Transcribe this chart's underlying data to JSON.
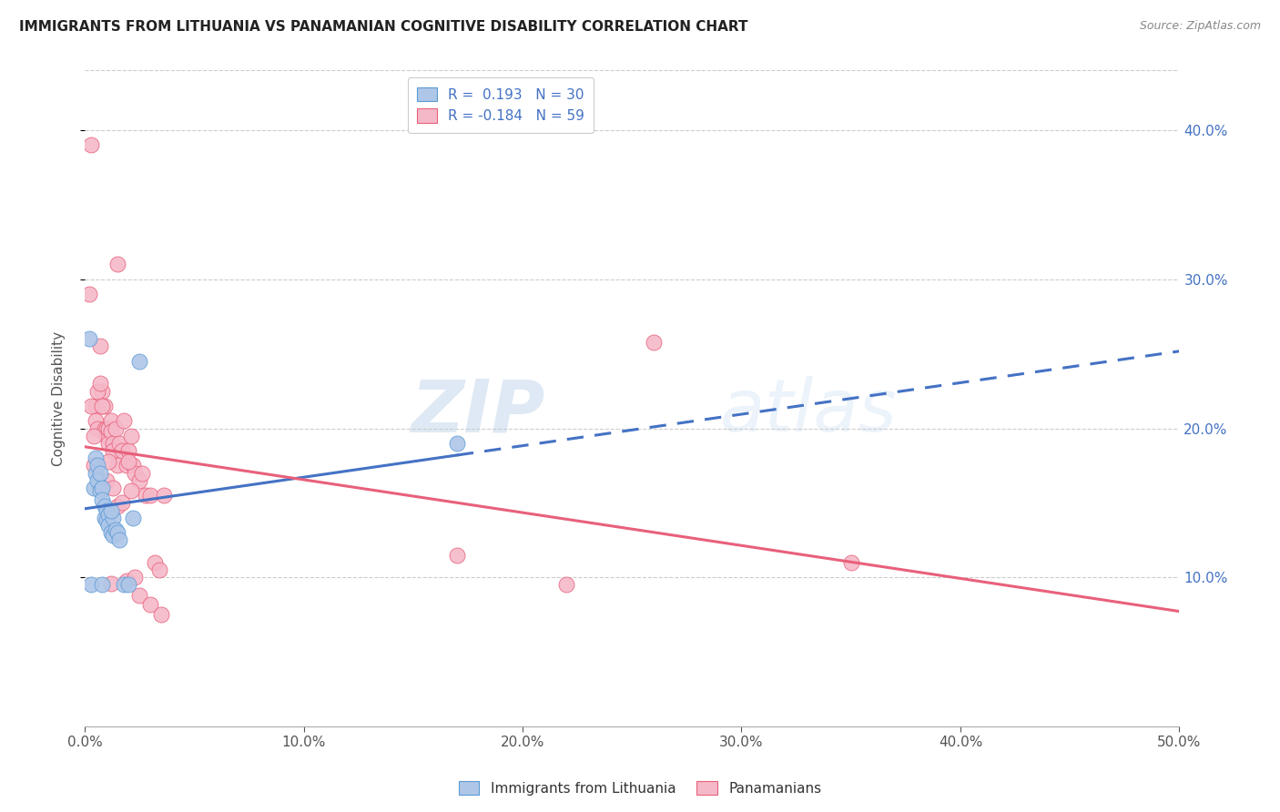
{
  "title": "IMMIGRANTS FROM LITHUANIA VS PANAMANIAN COGNITIVE DISABILITY CORRELATION CHART",
  "source": "Source: ZipAtlas.com",
  "ylabel": "Cognitive Disability",
  "xlim": [
    0.0,
    0.5
  ],
  "ylim": [
    0.0,
    0.44
  ],
  "yticks": [
    0.1,
    0.2,
    0.3,
    0.4
  ],
  "ytick_labels": [
    "10.0%",
    "20.0%",
    "30.0%",
    "40.0%"
  ],
  "xticks": [
    0.0,
    0.1,
    0.2,
    0.3,
    0.4,
    0.5
  ],
  "xtick_labels": [
    "0.0%",
    "10.0%",
    "20.0%",
    "30.0%",
    "40.0%",
    "50.0%"
  ],
  "legend_blue_label": "R =  0.193   N = 30",
  "legend_pink_label": "R = -0.184   N = 59",
  "blue_color": "#aec6e8",
  "pink_color": "#f5b8c8",
  "blue_edge_color": "#5b9bd5",
  "pink_edge_color": "#e8607a",
  "blue_line_color": "#4472c4",
  "pink_line_color": "#e8607a",
  "watermark_zip": "ZIP",
  "watermark_atlas": "atlas",
  "blue_scatter_x": [
    0.002,
    0.004,
    0.005,
    0.005,
    0.006,
    0.006,
    0.007,
    0.007,
    0.008,
    0.008,
    0.009,
    0.009,
    0.01,
    0.01,
    0.011,
    0.011,
    0.012,
    0.013,
    0.013,
    0.014,
    0.015,
    0.016,
    0.018,
    0.02,
    0.022,
    0.025,
    0.17,
    0.003,
    0.008,
    0.012
  ],
  "blue_scatter_y": [
    0.26,
    0.16,
    0.17,
    0.18,
    0.175,
    0.165,
    0.17,
    0.158,
    0.16,
    0.152,
    0.148,
    0.14,
    0.145,
    0.138,
    0.142,
    0.135,
    0.13,
    0.128,
    0.14,
    0.132,
    0.13,
    0.125,
    0.095,
    0.095,
    0.14,
    0.245,
    0.19,
    0.095,
    0.095,
    0.145
  ],
  "pink_scatter_x": [
    0.002,
    0.003,
    0.004,
    0.005,
    0.005,
    0.006,
    0.007,
    0.008,
    0.008,
    0.009,
    0.009,
    0.01,
    0.01,
    0.011,
    0.011,
    0.012,
    0.012,
    0.013,
    0.013,
    0.014,
    0.015,
    0.016,
    0.017,
    0.018,
    0.019,
    0.02,
    0.021,
    0.022,
    0.023,
    0.025,
    0.026,
    0.028,
    0.03,
    0.032,
    0.034,
    0.036,
    0.17,
    0.22,
    0.26,
    0.35,
    0.003,
    0.004,
    0.006,
    0.007,
    0.008,
    0.01,
    0.011,
    0.013,
    0.015,
    0.017,
    0.019,
    0.021,
    0.023,
    0.015,
    0.02,
    0.012,
    0.025,
    0.03,
    0.035
  ],
  "pink_scatter_y": [
    0.29,
    0.39,
    0.175,
    0.215,
    0.205,
    0.2,
    0.255,
    0.225,
    0.215,
    0.215,
    0.2,
    0.2,
    0.195,
    0.2,
    0.19,
    0.205,
    0.198,
    0.19,
    0.185,
    0.2,
    0.175,
    0.19,
    0.185,
    0.205,
    0.175,
    0.185,
    0.195,
    0.175,
    0.17,
    0.165,
    0.17,
    0.155,
    0.155,
    0.11,
    0.105,
    0.155,
    0.115,
    0.095,
    0.258,
    0.11,
    0.215,
    0.195,
    0.225,
    0.23,
    0.215,
    0.165,
    0.178,
    0.16,
    0.148,
    0.15,
    0.098,
    0.158,
    0.1,
    0.31,
    0.178,
    0.096,
    0.088,
    0.082,
    0.075
  ]
}
